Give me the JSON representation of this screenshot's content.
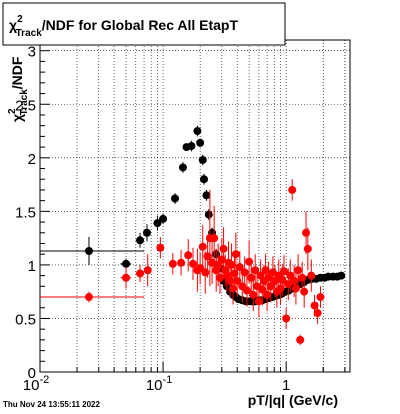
{
  "footer": {
    "timestamp": "Thu Nov 24 13:55:11 2022"
  },
  "chart_data": {
    "type": "scatter",
    "title": {
      "prefix": "χ",
      "sup": "2",
      "sub": "Track",
      "suffix": "/NDF for Global Rec All EtapT"
    },
    "xlabel": "pT/|q| (GeV/c)",
    "ylabel": {
      "prefix": "χ",
      "sup": "2",
      "sub": "Track",
      "suffix": "/NDF"
    },
    "xscale": "log",
    "xlim": [
      0.01,
      3.3
    ],
    "ylim": [
      0,
      3.1
    ],
    "x_tick_labels": [
      {
        "value": 0.01,
        "label": "10",
        "exp": "-2"
      },
      {
        "value": 0.1,
        "label": "10",
        "exp": "-1"
      },
      {
        "value": 1,
        "label": "1",
        "exp": ""
      }
    ],
    "y_tick_labels": [
      {
        "value": 0,
        "label": "0"
      },
      {
        "value": 0.5,
        "label": "0.5"
      },
      {
        "value": 1,
        "label": "1"
      },
      {
        "value": 1.5,
        "label": "1.5"
      },
      {
        "value": 2,
        "label": "2"
      },
      {
        "value": 2.5,
        "label": "2.5"
      },
      {
        "value": 3,
        "label": "3"
      }
    ],
    "grid": true,
    "series": [
      {
        "color": "#000000",
        "points": [
          [
            0.025,
            1.13,
            0.015,
            0.045,
            0.13
          ],
          [
            0.05,
            1.01,
            0.005,
            0.005,
            0.05
          ],
          [
            0.065,
            1.23,
            0.005,
            0.005,
            0.07
          ],
          [
            0.074,
            1.3,
            0.005,
            0.005,
            0.08
          ],
          [
            0.09,
            1.39,
            0.005,
            0.005,
            0.07
          ],
          [
            0.1,
            1.43,
            0.005,
            0.005,
            0.05
          ],
          [
            0.125,
            1.62,
            0.005,
            0.005,
            0.05
          ],
          [
            0.145,
            1.91,
            0.005,
            0.005,
            0.05
          ],
          [
            0.155,
            2.1,
            0.005,
            0.005,
            0.03
          ],
          [
            0.17,
            2.11,
            0.005,
            0.005,
            0.05
          ],
          [
            0.19,
            2.25,
            0.005,
            0.005,
            0.05
          ],
          [
            0.2,
            2.14,
            0.005,
            0.005,
            0.04
          ],
          [
            0.21,
            1.98,
            0.005,
            0.005,
            0.05
          ],
          [
            0.215,
            1.8,
            0.005,
            0.005,
            0.05
          ],
          [
            0.225,
            1.65,
            0.005,
            0.005,
            0.05
          ],
          [
            0.235,
            1.47,
            0.005,
            0.005,
            0.05
          ],
          [
            0.25,
            1.3,
            0.005,
            0.005,
            0.05
          ],
          [
            0.27,
            1.1,
            0.005,
            0.005,
            0.05
          ],
          [
            0.29,
            0.97,
            0.005,
            0.005,
            0.05
          ],
          [
            0.31,
            0.85,
            0.005,
            0.005,
            0.04
          ],
          [
            0.33,
            0.8,
            0.005,
            0.005,
            0.04
          ],
          [
            0.35,
            0.75,
            0.005,
            0.005,
            0.04
          ],
          [
            0.37,
            0.72,
            0.005,
            0.005,
            0.03
          ],
          [
            0.39,
            0.7,
            0.005,
            0.005,
            0.03
          ],
          [
            0.41,
            0.68,
            0.005,
            0.005,
            0.03
          ],
          [
            0.44,
            0.67,
            0.005,
            0.005,
            0.03
          ],
          [
            0.47,
            0.66,
            0.005,
            0.005,
            0.03
          ],
          [
            0.5,
            0.66,
            0.005,
            0.005,
            0.03
          ],
          [
            0.53,
            0.66,
            0.005,
            0.005,
            0.03
          ],
          [
            0.56,
            0.66,
            0.005,
            0.005,
            0.03
          ],
          [
            0.6,
            0.67,
            0.005,
            0.005,
            0.03
          ],
          [
            0.64,
            0.67,
            0.005,
            0.005,
            0.03
          ],
          [
            0.68,
            0.68,
            0.005,
            0.005,
            0.03
          ],
          [
            0.72,
            0.69,
            0.005,
            0.005,
            0.03
          ],
          [
            0.77,
            0.7,
            0.005,
            0.005,
            0.03
          ],
          [
            0.82,
            0.71,
            0.005,
            0.005,
            0.03
          ],
          [
            0.87,
            0.72,
            0.005,
            0.005,
            0.03
          ],
          [
            0.92,
            0.73,
            0.005,
            0.005,
            0.03
          ],
          [
            0.98,
            0.75,
            0.005,
            0.005,
            0.03
          ],
          [
            1.05,
            0.76,
            0.005,
            0.005,
            0.03
          ],
          [
            1.12,
            0.78,
            0.005,
            0.005,
            0.03
          ],
          [
            1.2,
            0.8,
            0.005,
            0.005,
            0.03
          ],
          [
            1.3,
            0.82,
            0.005,
            0.005,
            0.03
          ],
          [
            1.4,
            0.84,
            0.005,
            0.005,
            0.03
          ],
          [
            1.5,
            0.86,
            0.005,
            0.005,
            0.03
          ],
          [
            1.62,
            0.87,
            0.005,
            0.005,
            0.03
          ],
          [
            1.75,
            0.87,
            0.005,
            0.005,
            0.03
          ],
          [
            1.9,
            0.88,
            0.005,
            0.005,
            0.03
          ],
          [
            2.05,
            0.88,
            0.005,
            0.005,
            0.03
          ],
          [
            2.2,
            0.89,
            0.005,
            0.005,
            0.03
          ],
          [
            2.4,
            0.89,
            0.005,
            0.005,
            0.03
          ],
          [
            2.6,
            0.89,
            0.005,
            0.005,
            0.03
          ],
          [
            2.8,
            0.9,
            0.005,
            0.005,
            0.03
          ]
        ]
      },
      {
        "color": "#ff0000",
        "points": [
          [
            0.025,
            0.7,
            0.015,
            0.045,
            0.05
          ],
          [
            0.05,
            0.88,
            0.005,
            0.005,
            0.1
          ],
          [
            0.065,
            0.92,
            0.005,
            0.005,
            0.08
          ],
          [
            0.075,
            0.95,
            0.005,
            0.005,
            0.15
          ],
          [
            0.095,
            1.16,
            0.005,
            0.005,
            0.1
          ],
          [
            0.12,
            1.01,
            0.005,
            0.005,
            0.1
          ],
          [
            0.14,
            1.02,
            0.005,
            0.005,
            0.12
          ],
          [
            0.16,
            1.09,
            0.005,
            0.005,
            0.15
          ],
          [
            0.175,
            1.01,
            0.005,
            0.005,
            0.15
          ],
          [
            0.19,
            0.95,
            0.005,
            0.005,
            0.2
          ],
          [
            0.2,
            0.97,
            0.005,
            0.005,
            0.15
          ],
          [
            0.21,
            1.17,
            0.005,
            0.005,
            0.2
          ],
          [
            0.22,
            0.93,
            0.005,
            0.005,
            0.2
          ],
          [
            0.23,
            1.08,
            0.005,
            0.005,
            0.2
          ],
          [
            0.24,
            1.25,
            0.005,
            0.005,
            0.45
          ],
          [
            0.25,
            1.02,
            0.005,
            0.005,
            0.2
          ],
          [
            0.26,
            1.25,
            0.005,
            0.005,
            0.3
          ],
          [
            0.27,
            0.95,
            0.005,
            0.005,
            0.2
          ],
          [
            0.28,
            1.0,
            0.005,
            0.005,
            0.2
          ],
          [
            0.29,
            0.88,
            0.005,
            0.005,
            0.15
          ],
          [
            0.3,
            1.05,
            0.005,
            0.005,
            0.2
          ],
          [
            0.31,
            1.15,
            0.005,
            0.005,
            0.2
          ],
          [
            0.32,
            0.95,
            0.005,
            0.005,
            0.15
          ],
          [
            0.33,
            0.9,
            0.005,
            0.005,
            0.15
          ],
          [
            0.34,
            1.02,
            0.005,
            0.005,
            0.2
          ],
          [
            0.35,
            0.85,
            0.005,
            0.005,
            0.15
          ],
          [
            0.36,
            1.0,
            0.005,
            0.005,
            0.2
          ],
          [
            0.37,
            0.78,
            0.005,
            0.005,
            0.15
          ],
          [
            0.38,
            0.92,
            0.005,
            0.005,
            0.15
          ],
          [
            0.39,
            1.1,
            0.005,
            0.005,
            0.2
          ],
          [
            0.4,
            0.85,
            0.005,
            0.005,
            0.15
          ],
          [
            0.42,
            0.98,
            0.005,
            0.005,
            0.15
          ],
          [
            0.44,
            0.8,
            0.005,
            0.005,
            0.15
          ],
          [
            0.46,
            0.93,
            0.005,
            0.005,
            0.15
          ],
          [
            0.48,
            0.76,
            0.005,
            0.005,
            0.15
          ],
          [
            0.5,
            1.03,
            0.005,
            0.005,
            0.2
          ],
          [
            0.52,
            0.88,
            0.005,
            0.005,
            0.15
          ],
          [
            0.54,
            0.72,
            0.005,
            0.005,
            0.15
          ],
          [
            0.56,
            0.95,
            0.005,
            0.005,
            0.15
          ],
          [
            0.58,
            0.8,
            0.005,
            0.005,
            0.15
          ],
          [
            0.6,
            0.66,
            0.005,
            0.005,
            0.15
          ],
          [
            0.62,
            0.9,
            0.005,
            0.005,
            0.15
          ],
          [
            0.64,
            0.77,
            0.005,
            0.005,
            0.15
          ],
          [
            0.66,
            0.85,
            0.005,
            0.005,
            0.15
          ],
          [
            0.68,
            0.95,
            0.005,
            0.005,
            0.15
          ],
          [
            0.7,
            0.72,
            0.005,
            0.005,
            0.15
          ],
          [
            0.72,
            0.88,
            0.005,
            0.005,
            0.15
          ],
          [
            0.75,
            0.8,
            0.005,
            0.005,
            0.15
          ],
          [
            0.78,
            0.93,
            0.005,
            0.005,
            0.15
          ],
          [
            0.81,
            0.85,
            0.005,
            0.005,
            0.15
          ],
          [
            0.84,
            0.75,
            0.005,
            0.005,
            0.15
          ],
          [
            0.87,
            0.9,
            0.005,
            0.005,
            0.15
          ],
          [
            0.9,
            0.78,
            0.005,
            0.005,
            0.15
          ],
          [
            0.93,
            0.86,
            0.005,
            0.005,
            0.15
          ],
          [
            0.96,
            0.94,
            0.005,
            0.005,
            0.15
          ],
          [
            1.0,
            0.5,
            0.005,
            0.005,
            0.1
          ],
          [
            1.04,
            0.82,
            0.005,
            0.005,
            0.15
          ],
          [
            1.08,
            0.9,
            0.005,
            0.005,
            0.15
          ],
          [
            1.12,
            1.7,
            0.005,
            0.005,
            0.1
          ],
          [
            1.16,
            0.85,
            0.005,
            0.005,
            0.15
          ],
          [
            1.2,
            0.78,
            0.005,
            0.005,
            0.15
          ],
          [
            1.25,
            0.95,
            0.005,
            0.005,
            0.15
          ],
          [
            1.3,
            0.3,
            0.005,
            0.005,
            0.05
          ],
          [
            1.35,
            0.88,
            0.005,
            0.005,
            0.15
          ],
          [
            1.4,
            0.75,
            0.005,
            0.005,
            0.15
          ],
          [
            1.45,
            1.3,
            0.005,
            0.005,
            0.2
          ],
          [
            1.5,
            1.15,
            0.005,
            0.005,
            0.2
          ],
          [
            1.6,
            0.9,
            0.005,
            0.005,
            0.15
          ],
          [
            1.7,
            0.62,
            0.005,
            0.005,
            0.1
          ],
          [
            1.8,
            0.55,
            0.005,
            0.005,
            0.1
          ],
          [
            1.9,
            0.7,
            0.005,
            0.005,
            0.1
          ]
        ]
      }
    ]
  }
}
